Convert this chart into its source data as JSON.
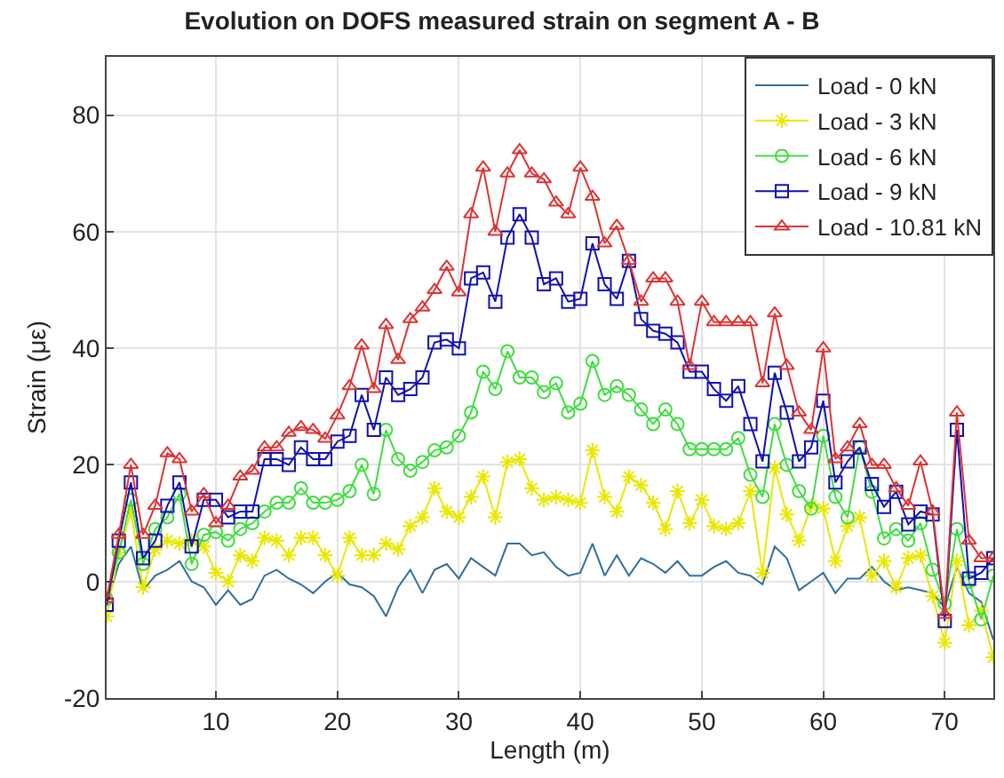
{
  "chart_data": {
    "type": "line",
    "title": "Evolution on DOFS measured strain on segment A - B",
    "xlabel": "Length (m)",
    "ylabel": "Strain (με)",
    "x": [
      1,
      2,
      3,
      4,
      5,
      6,
      7,
      8,
      9,
      10,
      11,
      12,
      13,
      14,
      15,
      16,
      17,
      18,
      19,
      20,
      21,
      22,
      23,
      24,
      25,
      26,
      27,
      28,
      29,
      30,
      31,
      32,
      33,
      34,
      35,
      36,
      37,
      38,
      39,
      40,
      41,
      42,
      43,
      44,
      45,
      46,
      47,
      48,
      49,
      50,
      51,
      52,
      53,
      54,
      55,
      56,
      57,
      58,
      59,
      60,
      61,
      62,
      63,
      64,
      65,
      66,
      67,
      68,
      69,
      70,
      71,
      72,
      73,
      74
    ],
    "series": [
      {
        "name": "Load - 0 kN",
        "color": "#2f6fa0",
        "marker": "none",
        "values": [
          -4,
          3,
          6,
          -1.5,
          1,
          2,
          3.5,
          0,
          -1,
          -4,
          -1.5,
          -4,
          -3,
          1,
          2,
          0.5,
          -0.5,
          -2,
          0,
          1.5,
          -0.5,
          -1,
          -2.5,
          -6,
          -1,
          2,
          -2,
          2,
          3,
          0.5,
          4,
          2.5,
          1,
          6.5,
          6.5,
          4.5,
          5,
          2.5,
          1,
          1.5,
          6.5,
          1,
          4.5,
          1,
          4,
          3,
          1.5,
          3.5,
          1,
          1,
          2.5,
          3.5,
          1.5,
          1,
          -0.5,
          6,
          4,
          -1.5,
          0,
          1.5,
          -2,
          0.5,
          0.5,
          2.5,
          0,
          -1.5,
          -1,
          -1.5,
          -2,
          -4.5,
          2.5,
          -2,
          -3.5,
          -10
        ]
      },
      {
        "name": "Load - 3 kN",
        "color": "#e8e800",
        "marker": "cross",
        "values": [
          -6,
          5,
          12,
          -1,
          5.5,
          7,
          6.5,
          7,
          6,
          1.5,
          0,
          4.5,
          3.5,
          7.5,
          7,
          4.5,
          7.5,
          7.5,
          4.5,
          1,
          7.5,
          4.5,
          4.5,
          6.5,
          5.5,
          9.5,
          11,
          16,
          12,
          11,
          14.5,
          18,
          11,
          20.5,
          21,
          16,
          14,
          14.5,
          14,
          13.5,
          22.5,
          14.5,
          12,
          18,
          16.5,
          13.5,
          9,
          15.5,
          10,
          14,
          9.5,
          9,
          10,
          15.5,
          1.5,
          19.5,
          11.5,
          7,
          13,
          12.5,
          3.5,
          9.5,
          11,
          1,
          3.5,
          -1,
          4,
          4.5,
          -2.5,
          -10.5,
          3.5,
          -7.5,
          -5,
          -13
        ]
      },
      {
        "name": "Load - 6 kN",
        "color": "#40dd40",
        "marker": "circle",
        "values": [
          -3,
          5,
          14,
          3,
          9,
          11,
          15,
          3,
          8,
          8.5,
          7,
          9,
          10,
          12,
          13.5,
          13.5,
          16,
          13.5,
          13.5,
          14,
          15.5,
          20,
          15,
          26,
          21,
          19,
          20.5,
          22.5,
          23,
          25,
          29,
          36,
          33,
          39.5,
          35,
          35,
          32.5,
          34,
          29,
          30.5,
          37.8,
          32,
          33.5,
          32,
          29.5,
          27,
          29.5,
          27,
          22.7,
          22.7,
          22.7,
          22.7,
          24.6,
          18.3,
          14.5,
          27,
          20,
          15.5,
          12.5,
          25,
          14.5,
          11,
          23,
          15.4,
          7.4,
          9,
          7,
          10,
          2,
          -3.8,
          9,
          0,
          -6.5,
          1
        ]
      },
      {
        "name": "Load - 9 kN",
        "color": "#1010b0",
        "marker": "square",
        "values": [
          -4,
          7,
          17,
          4,
          7,
          13,
          17,
          6,
          14,
          14,
          11,
          12,
          12,
          21,
          21,
          20,
          23,
          21,
          21,
          24,
          25,
          32,
          26,
          35,
          32,
          33,
          35,
          41,
          41.5,
          40,
          52,
          53,
          48,
          59,
          63,
          59,
          51,
          52,
          48,
          48.5,
          58,
          51,
          48.5,
          55,
          45,
          43,
          42.5,
          41,
          36,
          36,
          33,
          31,
          33.5,
          27,
          20.6,
          35.8,
          29,
          20.6,
          23,
          31,
          17,
          20.6,
          23,
          16.7,
          12.8,
          15.4,
          9.8,
          12,
          11.5,
          -6.8,
          26,
          0.5,
          1.5,
          4
        ]
      },
      {
        "name": "Load - 10.81 kN",
        "color": "#dd3333",
        "marker": "triangle",
        "values": [
          -3,
          8,
          20,
          8,
          13,
          22,
          21,
          12,
          15,
          10,
          13,
          18,
          19,
          23,
          23,
          25.5,
          26.5,
          26,
          24.5,
          28.5,
          33.5,
          40.5,
          33,
          44,
          38,
          45,
          47,
          50,
          54,
          49.6,
          63,
          71,
          60,
          70,
          74,
          70,
          69,
          65,
          63,
          71,
          66,
          58,
          61,
          55,
          48,
          52,
          52,
          48,
          37,
          48,
          44.5,
          44.5,
          44.5,
          44.5,
          34,
          46,
          37,
          29,
          26,
          40,
          21,
          23,
          27,
          20,
          20,
          16,
          13,
          20.6,
          12,
          -5.7,
          29,
          7,
          4,
          4
        ]
      }
    ],
    "xlim": [
      1,
      74
    ],
    "xticks": [
      10,
      20,
      30,
      40,
      50,
      60,
      70
    ],
    "ylim": [
      -20,
      90
    ],
    "yticks": [
      -20,
      0,
      20,
      40,
      60,
      80
    ],
    "grid": true,
    "legend": "top right",
    "line_style": "solid"
  }
}
